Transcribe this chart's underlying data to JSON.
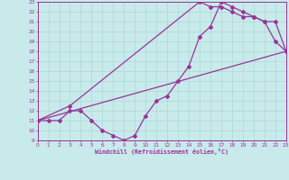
{
  "background_color": "#c8eaea",
  "grid_color": "#add8d8",
  "line_color": "#993399",
  "xlabel": "Windchill (Refroidissement éolien,°C)",
  "xmin": 0,
  "xmax": 23,
  "ymin": 9,
  "ymax": 23,
  "curve1_x": [
    0,
    1,
    2,
    3,
    4,
    5,
    6,
    7,
    8,
    9,
    10,
    11,
    12,
    13,
    14,
    15,
    16,
    17,
    18,
    19,
    20,
    21,
    22,
    23
  ],
  "curve1_y": [
    11,
    11,
    11,
    12,
    12,
    11,
    10,
    9.5,
    9,
    9.5,
    11.5,
    13,
    13.5,
    15,
    16.5,
    19.5,
    20.5,
    23,
    22.5,
    22,
    21.5,
    21,
    19,
    18
  ],
  "curve2_x": [
    0,
    3,
    15,
    16,
    17,
    18,
    19,
    20,
    21,
    22,
    23
  ],
  "curve2_y": [
    11,
    12.5,
    23,
    22.5,
    22.5,
    22,
    21.5,
    21.5,
    21,
    21,
    18
  ],
  "curve3_x": [
    0,
    23
  ],
  "curve3_y": [
    11,
    18
  ]
}
